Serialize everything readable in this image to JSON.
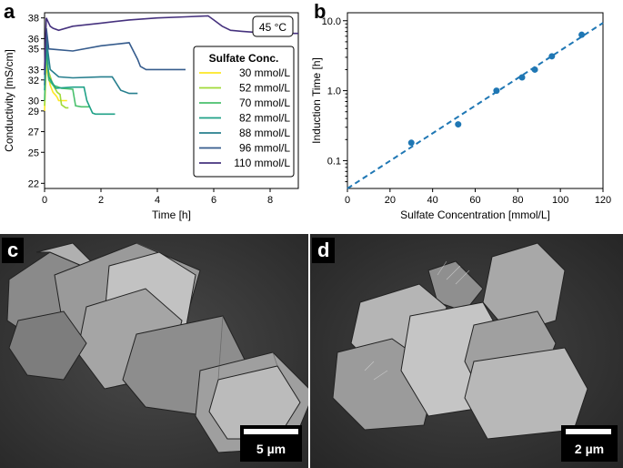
{
  "panels": {
    "a": "a",
    "b": "b",
    "c": "c",
    "d": "d"
  },
  "chart_data": [
    {
      "type": "line",
      "xlabel": "Time [h]",
      "ylabel": "Conductivity [mS/cm]",
      "xlim": [
        0,
        9
      ],
      "ylim": [
        21.5,
        38.5
      ],
      "xticks": [
        0,
        2,
        4,
        6,
        8
      ],
      "yticks": [
        22,
        25,
        27,
        29,
        30,
        32,
        33,
        35,
        36,
        38
      ],
      "annotation": "45 °C",
      "legend_title": "Sulfate Conc.",
      "legend_position": "center-right",
      "series": [
        {
          "name": "30 mmol/L",
          "color": "#fde725",
          "x": [
            0,
            0.06,
            0.12,
            0.2,
            0.3,
            0.4,
            0.45,
            0.5,
            0.8
          ],
          "y": [
            29.0,
            33.5,
            32.5,
            31.5,
            30.8,
            30.5,
            30.3,
            30.0,
            30.0
          ]
        },
        {
          "name": "52 mmol/L",
          "color": "#a0da39",
          "x": [
            0,
            0.06,
            0.12,
            0.3,
            0.45,
            0.55,
            0.6,
            0.75,
            0.85
          ],
          "y": [
            29.5,
            34.5,
            33.0,
            31.5,
            30.8,
            30.6,
            29.6,
            29.3,
            29.3
          ]
        },
        {
          "name": "70 mmol/L",
          "color": "#4ac16d",
          "x": [
            0,
            0.06,
            0.15,
            0.3,
            0.6,
            1.0,
            1.1,
            1.3,
            1.6
          ],
          "y": [
            30.0,
            35.5,
            32.0,
            31.5,
            31.2,
            31.1,
            29.5,
            29.4,
            29.4
          ]
        },
        {
          "name": "82 mmol/L",
          "color": "#1fa187",
          "x": [
            0,
            0.06,
            0.15,
            0.4,
            1.0,
            1.4,
            1.5,
            1.7,
            1.8,
            2.5
          ],
          "y": [
            31.0,
            35.7,
            32.3,
            31.2,
            31.3,
            31.3,
            30.0,
            28.8,
            28.7,
            28.7
          ]
        },
        {
          "name": "88 mmol/L",
          "color": "#277f8e",
          "x": [
            0,
            0.06,
            0.2,
            0.5,
            1.0,
            2.0,
            2.4,
            2.7,
            3.0,
            3.3
          ],
          "y": [
            31.5,
            36.0,
            33.0,
            32.3,
            32.2,
            32.3,
            32.3,
            31.0,
            30.7,
            30.7
          ]
        },
        {
          "name": "96 mmol/L",
          "color": "#365c8d",
          "x": [
            0,
            0.06,
            0.15,
            1.0,
            2.0,
            3.0,
            3.3,
            3.4,
            3.6,
            4.0,
            5.0
          ],
          "y": [
            32.5,
            37.0,
            35.0,
            34.8,
            35.3,
            35.6,
            34.0,
            33.3,
            33.0,
            33.0,
            33.0
          ]
        },
        {
          "name": "110 mmol/L",
          "color": "#46327e",
          "x": [
            0,
            0.06,
            0.2,
            0.3,
            0.5,
            1.0,
            2.0,
            3.0,
            4.0,
            5.0,
            5.8,
            6.0,
            6.3,
            6.6,
            7.0,
            8.0,
            9.0
          ],
          "y": [
            33.0,
            38.0,
            37.2,
            37.0,
            36.8,
            37.2,
            37.5,
            37.8,
            38.0,
            38.1,
            38.2,
            37.8,
            37.2,
            36.8,
            36.7,
            36.5,
            36.5
          ]
        }
      ]
    },
    {
      "type": "scatter",
      "xlabel": "Sulfate Concentration [mmol/L]",
      "ylabel": "Induction Time [h]",
      "xlim": [
        0,
        120
      ],
      "ylim": [
        0.04,
        13
      ],
      "yscale": "log",
      "xticks": [
        0,
        20,
        40,
        60,
        80,
        100,
        120
      ],
      "yticks": [
        0.1,
        1.0,
        10.0
      ],
      "ytick_labels": [
        "0.1",
        "1.0",
        "10.0"
      ],
      "color": "#1f77b4",
      "points": {
        "x": [
          30,
          52,
          70,
          82,
          88,
          96,
          110
        ],
        "y": [
          0.18,
          0.33,
          1.0,
          1.55,
          2.0,
          3.1,
          6.3
        ]
      },
      "fit": {
        "style": "dashed",
        "x": [
          0,
          120
        ],
        "y": [
          0.04,
          9.3
        ]
      }
    }
  ],
  "images": {
    "c": {
      "scalebar": "5 µm"
    },
    "d": {
      "scalebar": "2 µm"
    }
  }
}
